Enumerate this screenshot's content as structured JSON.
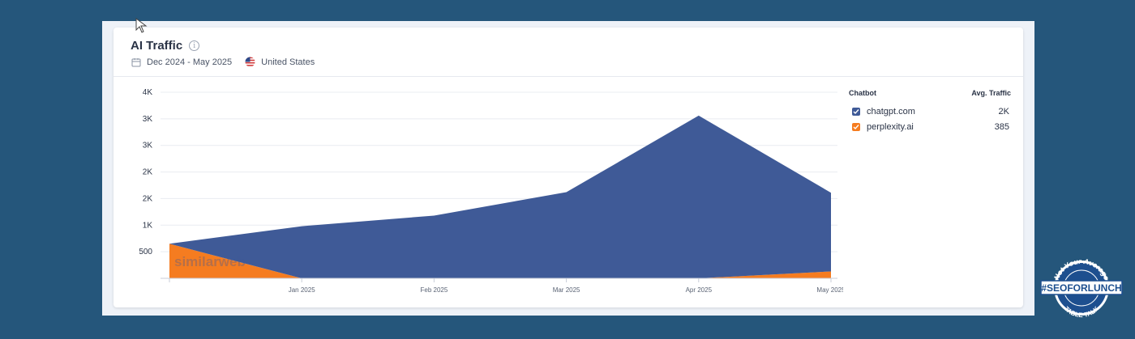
{
  "header": {
    "title": "AI Traffic",
    "date_range": "Dec 2024 - May 2025",
    "country": "United States"
  },
  "legend": {
    "col_chatbot": "Chatbot",
    "col_traffic": "Avg. Traffic",
    "items": [
      {
        "name": "chatgpt.com",
        "value": "2K",
        "color": "#3f5a97"
      },
      {
        "name": "perplexity.ai",
        "value": "385",
        "color": "#f57c20"
      }
    ]
  },
  "watermark": "similarweb",
  "badge": {
    "top": "Not Your Average",
    "main": "#SEOFORLUNCH",
    "bottom": "TABLE TALK"
  },
  "chart_data": {
    "type": "area",
    "stacked": true,
    "x": [
      "Dec 2024",
      "Jan 2025",
      "Feb 2025",
      "Mar 2025",
      "Apr 2025",
      "May 2025"
    ],
    "x_tick_labels": [
      "",
      "Jan 2025",
      "Feb 2025",
      "Mar 2025",
      "Apr 2025",
      "May 2025"
    ],
    "y_ticks": [
      500,
      1000,
      1500,
      2000,
      2500,
      3000,
      3500
    ],
    "y_tick_labels": [
      "500",
      "1K",
      "2K",
      "2K",
      "3K",
      "3K",
      "4K"
    ],
    "ylim": [
      0,
      3500
    ],
    "grid": true,
    "legend": "right",
    "series": [
      {
        "name": "perplexity.ai",
        "color": "#f57c20",
        "values": [
          650,
          0,
          0,
          0,
          0,
          130
        ]
      },
      {
        "name": "chatgpt.com",
        "color": "#3f5a97",
        "values": [
          0,
          980,
          1180,
          1620,
          3060,
          1480
        ]
      }
    ]
  }
}
